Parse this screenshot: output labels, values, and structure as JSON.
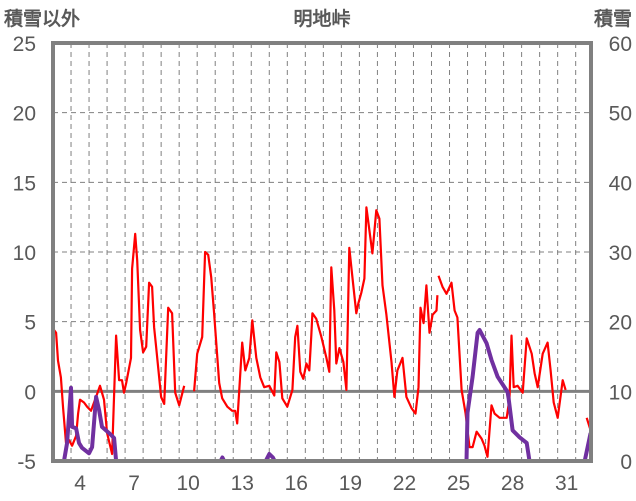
{
  "chart_data": {
    "type": "line",
    "title": "明地峠",
    "ylabel_left": "積雪以外",
    "ylabel_right": "積雪",
    "xlabel": "",
    "xlim": [
      3,
      32.85
    ],
    "ylim_left": [
      -5,
      25
    ],
    "ylim_right": [
      0,
      60
    ],
    "yticks_left": [
      "-5",
      "0",
      "5",
      "10",
      "15",
      "20",
      "25"
    ],
    "yticks_right": [
      "0",
      "10",
      "20",
      "30",
      "40",
      "50",
      "60"
    ],
    "xticks": [
      "4",
      "7",
      "10",
      "13",
      "16",
      "19",
      "22",
      "25",
      "28",
      "31"
    ],
    "grid": true,
    "colors": {
      "red": "#ff0000",
      "purple": "#7030a0",
      "axis": "#808080",
      "grid": "#808080",
      "text": "#595959"
    },
    "series": [
      {
        "name": "積雪以外",
        "axis": "left",
        "color": "#ff0000",
        "segments": [
          [
            [
              3.0,
              4.5
            ],
            [
              3.17,
              4.2
            ],
            [
              3.28,
              2.2
            ],
            [
              3.44,
              1.0
            ],
            [
              3.56,
              -1.2
            ],
            [
              3.72,
              -3.7
            ],
            [
              3.89,
              -3.5
            ],
            [
              4.06,
              -3.9
            ],
            [
              4.28,
              -3.2
            ],
            [
              4.39,
              -1.6
            ],
            [
              4.5,
              -0.6
            ],
            [
              4.72,
              -0.8
            ],
            [
              4.89,
              -1.1
            ],
            [
              5.11,
              -1.4
            ],
            [
              5.39,
              -0.4
            ],
            [
              5.61,
              0.4
            ],
            [
              5.83,
              -0.6
            ],
            [
              6.0,
              -3.0
            ],
            [
              6.28,
              -4.5
            ],
            [
              6.5,
              4.0
            ],
            [
              6.67,
              0.8
            ],
            [
              6.83,
              0.8
            ],
            [
              6.94,
              -0.1
            ],
            [
              7.06,
              0.6
            ],
            [
              7.33,
              2.4
            ],
            [
              7.39,
              8.8
            ],
            [
              7.56,
              11.3
            ],
            [
              7.67,
              9.4
            ],
            [
              7.83,
              4.4
            ],
            [
              8.0,
              2.8
            ],
            [
              8.17,
              3.2
            ],
            [
              8.33,
              7.8
            ],
            [
              8.5,
              7.5
            ],
            [
              8.61,
              4.6
            ],
            [
              8.72,
              3.2
            ],
            [
              9.0,
              -0.4
            ],
            [
              9.17,
              -0.9
            ],
            [
              9.39,
              6.0
            ],
            [
              9.61,
              5.6
            ],
            [
              9.78,
              -0.1
            ],
            [
              10.0,
              -1.0
            ],
            [
              10.28,
              0.4
            ]
          ],
          [
            [
              10.83,
              0.0
            ],
            [
              11.0,
              2.7
            ],
            [
              11.28,
              3.9
            ],
            [
              11.44,
              10.0
            ],
            [
              11.61,
              9.8
            ],
            [
              11.78,
              8.2
            ],
            [
              11.94,
              5.6
            ],
            [
              12.22,
              0.6
            ],
            [
              12.39,
              -0.5
            ],
            [
              12.67,
              -1.1
            ],
            [
              12.94,
              -1.4
            ],
            [
              13.11,
              -1.4
            ],
            [
              13.22,
              -2.3
            ],
            [
              13.5,
              3.5
            ],
            [
              13.67,
              1.5
            ],
            [
              13.89,
              2.4
            ],
            [
              14.06,
              5.1
            ],
            [
              14.28,
              2.4
            ],
            [
              14.5,
              1.0
            ],
            [
              14.72,
              0.3
            ],
            [
              15.0,
              0.4
            ],
            [
              15.28,
              -0.3
            ],
            [
              15.39,
              2.8
            ],
            [
              15.56,
              2.1
            ],
            [
              15.72,
              -0.5
            ],
            [
              16.0,
              -1.1
            ],
            [
              16.28,
              0.1
            ],
            [
              16.44,
              3.9
            ],
            [
              16.56,
              4.7
            ],
            [
              16.72,
              1.4
            ],
            [
              16.89,
              0.9
            ],
            [
              17.06,
              2.0
            ],
            [
              17.22,
              1.5
            ],
            [
              17.33,
              4.0
            ],
            [
              17.39,
              5.6
            ],
            [
              17.61,
              5.2
            ],
            [
              17.89,
              3.9
            ],
            [
              18.17,
              2.4
            ],
            [
              18.33,
              1.4
            ],
            [
              18.44,
              8.9
            ],
            [
              18.61,
              5.8
            ],
            [
              18.72,
              2.0
            ],
            [
              18.89,
              3.1
            ],
            [
              19.11,
              2.1
            ],
            [
              19.28,
              0.1
            ],
            [
              19.44,
              10.3
            ],
            [
              19.56,
              8.8
            ],
            [
              19.83,
              5.6
            ],
            [
              19.94,
              6.3
            ],
            [
              20.11,
              7.1
            ],
            [
              20.28,
              8.1
            ],
            [
              20.39,
              13.2
            ],
            [
              20.5,
              12.1
            ],
            [
              20.72,
              9.9
            ],
            [
              20.94,
              13.0
            ],
            [
              21.11,
              12.4
            ],
            [
              21.28,
              7.6
            ],
            [
              21.5,
              5.5
            ],
            [
              21.78,
              2.1
            ],
            [
              21.94,
              -0.4
            ],
            [
              22.11,
              1.5
            ],
            [
              22.39,
              2.4
            ],
            [
              22.61,
              -0.4
            ],
            [
              22.89,
              -1.2
            ],
            [
              23.11,
              -1.6
            ],
            [
              23.28,
              0.3
            ],
            [
              23.39,
              6.0
            ],
            [
              23.56,
              4.9
            ],
            [
              23.72,
              7.6
            ],
            [
              23.89,
              4.2
            ],
            [
              24.06,
              5.5
            ],
            [
              24.28,
              5.8
            ],
            [
              24.33,
              6.9
            ]
          ],
          [
            [
              24.39,
              8.3
            ],
            [
              24.61,
              7.5
            ],
            [
              24.83,
              7.0
            ],
            [
              25.11,
              7.8
            ],
            [
              25.28,
              5.8
            ],
            [
              25.44,
              5.3
            ],
            [
              25.67,
              0.1
            ],
            [
              25.89,
              -1.6
            ],
            [
              26.11,
              -4.0
            ],
            [
              26.28,
              -4.0
            ],
            [
              26.5,
              -2.9
            ],
            [
              26.78,
              -3.4
            ],
            [
              26.94,
              -3.9
            ],
            [
              27.11,
              -4.7
            ],
            [
              27.33,
              -1.0
            ],
            [
              27.5,
              -1.6
            ],
            [
              27.78,
              -1.9
            ],
            [
              28.17,
              -1.9
            ],
            [
              28.33,
              -0.5
            ],
            [
              28.44,
              4.0
            ],
            [
              28.56,
              0.3
            ],
            [
              28.78,
              0.4
            ],
            [
              29.06,
              -0.1
            ],
            [
              29.28,
              3.8
            ],
            [
              29.56,
              2.7
            ],
            [
              29.72,
              1.3
            ],
            [
              29.89,
              0.3
            ],
            [
              30.17,
              2.7
            ],
            [
              30.44,
              3.5
            ],
            [
              30.61,
              1.5
            ],
            [
              30.78,
              -0.8
            ],
            [
              31.0,
              -1.9
            ],
            [
              31.28,
              0.8
            ],
            [
              31.44,
              0.1
            ]
          ],
          [
            [
              32.61,
              -1.9
            ],
            [
              32.83,
              -2.8
            ]
          ]
        ]
      },
      {
        "name": "積雪",
        "axis": "right",
        "color": "#7030a0",
        "segments": [
          [
            [
              3.0,
              0
            ],
            [
              3.61,
              0
            ],
            [
              3.78,
              2.6
            ],
            [
              4.0,
              10.5
            ],
            [
              4.06,
              4.9
            ],
            [
              4.28,
              4.7
            ],
            [
              4.44,
              2.6
            ],
            [
              4.61,
              1.9
            ],
            [
              5.0,
              1.1
            ],
            [
              5.17,
              2.0
            ],
            [
              5.39,
              9.2
            ],
            [
              5.56,
              7.3
            ],
            [
              5.72,
              4.9
            ],
            [
              6.11,
              4.0
            ],
            [
              6.39,
              3.3
            ],
            [
              6.5,
              0
            ],
            [
              10.28,
              0
            ]
          ],
          [
            [
              10.83,
              0
            ],
            [
              12.3,
              0
            ],
            [
              12.4,
              0.5
            ],
            [
              12.5,
              0
            ],
            [
              14.8,
              0
            ],
            [
              15.0,
              1.0
            ],
            [
              15.2,
              0.5
            ],
            [
              15.3,
              0
            ],
            [
              25.94,
              0
            ],
            [
              26.0,
              6.9
            ],
            [
              26.28,
              12.1
            ],
            [
              26.56,
              18.4
            ],
            [
              26.67,
              18.8
            ],
            [
              27.06,
              16.9
            ],
            [
              27.33,
              14.5
            ],
            [
              27.67,
              12.1
            ],
            [
              28.22,
              9.9
            ],
            [
              28.28,
              9.0
            ],
            [
              28.5,
              4.4
            ],
            [
              28.89,
              3.4
            ],
            [
              29.28,
              2.6
            ],
            [
              29.44,
              0
            ],
            [
              31.5,
              0
            ]
          ],
          [
            [
              32.5,
              0
            ],
            [
              32.83,
              4.0
            ]
          ]
        ]
      }
    ]
  }
}
